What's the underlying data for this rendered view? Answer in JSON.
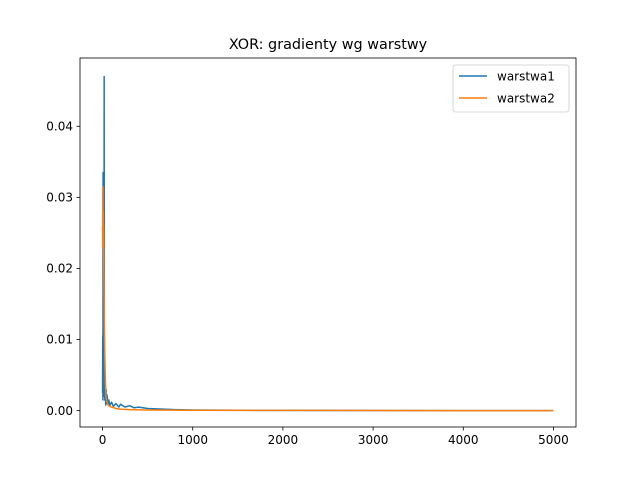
{
  "chart_data": {
    "type": "line",
    "title": "XOR: gradienty wg warstwy",
    "xlabel": "",
    "ylabel": "",
    "xlim": [
      -250,
      5250
    ],
    "ylim": [
      -0.0023,
      0.0496
    ],
    "x_ticks": [
      0,
      1000,
      2000,
      3000,
      4000,
      5000
    ],
    "x_tick_labels": [
      "0",
      "1000",
      "2000",
      "3000",
      "4000",
      "5000"
    ],
    "y_ticks": [
      0.0,
      0.01,
      0.02,
      0.03,
      0.04
    ],
    "y_tick_labels": [
      "0.00",
      "0.01",
      "0.02",
      "0.03",
      "0.04"
    ],
    "grid": false,
    "legend_position": "top-right",
    "series": [
      {
        "name": "warstwa1",
        "color": "#1f77b4",
        "points": [
          [
            0,
            0.0025
          ],
          [
            2,
            0.0105
          ],
          [
            4,
            0.0015
          ],
          [
            6,
            0.0335
          ],
          [
            8,
            0.006
          ],
          [
            10,
            0.031
          ],
          [
            12,
            0.002
          ],
          [
            14,
            0.009
          ],
          [
            16,
            0.003
          ],
          [
            18,
            0.047
          ],
          [
            20,
            0.004
          ],
          [
            22,
            0.0065
          ],
          [
            25,
            0.0015
          ],
          [
            30,
            0.0028
          ],
          [
            35,
            0.0008
          ],
          [
            40,
            0.003
          ],
          [
            45,
            0.001
          ],
          [
            50,
            0.0022
          ],
          [
            60,
            0.0009
          ],
          [
            70,
            0.0015
          ],
          [
            80,
            0.0007
          ],
          [
            100,
            0.0012
          ],
          [
            120,
            0.0006
          ],
          [
            150,
            0.001
          ],
          [
            180,
            0.0005
          ],
          [
            200,
            0.0009
          ],
          [
            250,
            0.0005
          ],
          [
            300,
            0.0007
          ],
          [
            350,
            0.0004
          ],
          [
            400,
            0.0005
          ],
          [
            500,
            0.0003
          ],
          [
            600,
            0.00025
          ],
          [
            800,
            0.00015
          ],
          [
            1000,
            0.0001
          ],
          [
            1500,
            5e-05
          ],
          [
            2000,
            3e-05
          ],
          [
            3000,
            2e-05
          ],
          [
            4000,
            1e-05
          ],
          [
            5000,
            1e-05
          ]
        ]
      },
      {
        "name": "warstwa2",
        "color": "#ff7f0e",
        "points": [
          [
            0,
            0.026
          ],
          [
            2,
            0.023
          ],
          [
            4,
            0.0315
          ],
          [
            6,
            0.025
          ],
          [
            8,
            0.028
          ],
          [
            10,
            0.023
          ],
          [
            12,
            0.026
          ],
          [
            14,
            0.02
          ],
          [
            16,
            0.018
          ],
          [
            18,
            0.015
          ],
          [
            20,
            0.012
          ],
          [
            25,
            0.008
          ],
          [
            30,
            0.005
          ],
          [
            35,
            0.003
          ],
          [
            40,
            0.0018
          ],
          [
            50,
            0.0012
          ],
          [
            60,
            0.0008
          ],
          [
            80,
            0.0006
          ],
          [
            100,
            0.0005
          ],
          [
            150,
            0.0003
          ],
          [
            200,
            0.0002
          ],
          [
            300,
            0.00015
          ],
          [
            500,
            0.0001
          ],
          [
            1000,
            5e-05
          ],
          [
            2000,
            3e-05
          ],
          [
            3000,
            2e-05
          ],
          [
            4000,
            1e-05
          ],
          [
            5000,
            1e-05
          ]
        ]
      }
    ]
  }
}
